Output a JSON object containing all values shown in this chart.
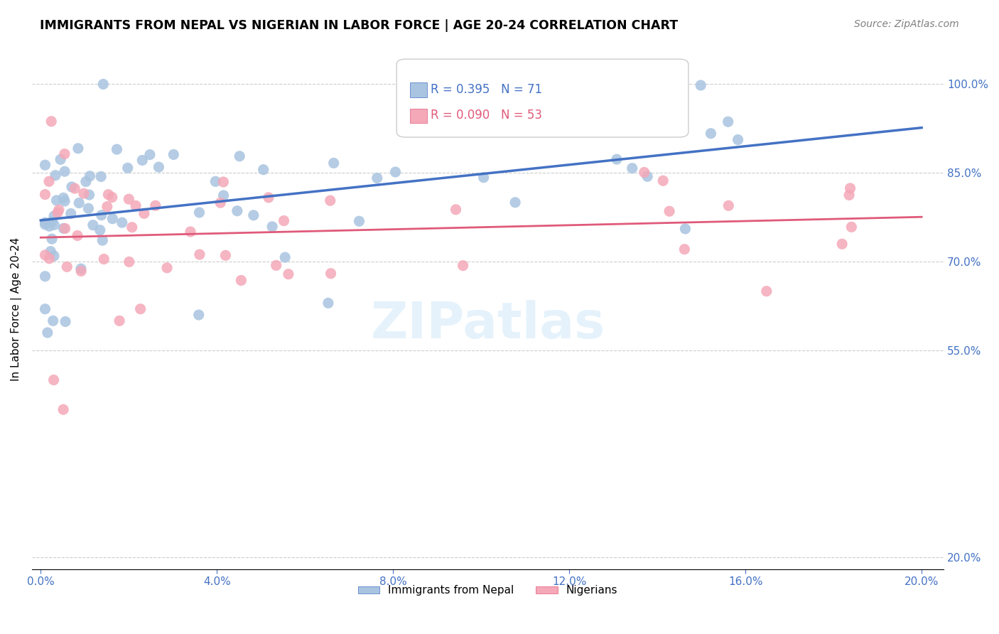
{
  "title": "IMMIGRANTS FROM NEPAL VS NIGERIAN IN LABOR FORCE | AGE 20-24 CORRELATION CHART",
  "source": "Source: ZipAtlas.com",
  "ylabel": "In Labor Force | Age 20-24",
  "y_tick_vals": [
    0.2,
    0.55,
    0.7,
    0.85,
    1.0
  ],
  "y_tick_labels": [
    "20.0%",
    "55.0%",
    "70.0%",
    "85.0%",
    "100.0%"
  ],
  "x_tick_vals": [
    0.0,
    0.04,
    0.08,
    0.12,
    0.16,
    0.2
  ],
  "x_tick_labels": [
    "0.0%",
    "4.0%",
    "8.0%",
    "12.0%",
    "16.0%",
    "20.0%"
  ],
  "x_lim": [
    -0.002,
    0.205
  ],
  "y_lim": [
    0.18,
    1.06
  ],
  "nepal_R": 0.395,
  "nepal_N": 71,
  "nigeria_R": 0.09,
  "nigeria_N": 53,
  "nepal_color": "#a8c4e0",
  "nigeria_color": "#f4a8b8",
  "nepal_line_color": "#4472c4",
  "nigeria_line_color": "#e05a7a",
  "axis_color": "#4472c4",
  "grid_color": "#cccccc",
  "watermark_text": "ZIPatlas",
  "watermark_color": "#d0e8f8",
  "legend_label_nepal": "Immigrants from Nepal",
  "legend_label_nigeria": "Nigerians"
}
